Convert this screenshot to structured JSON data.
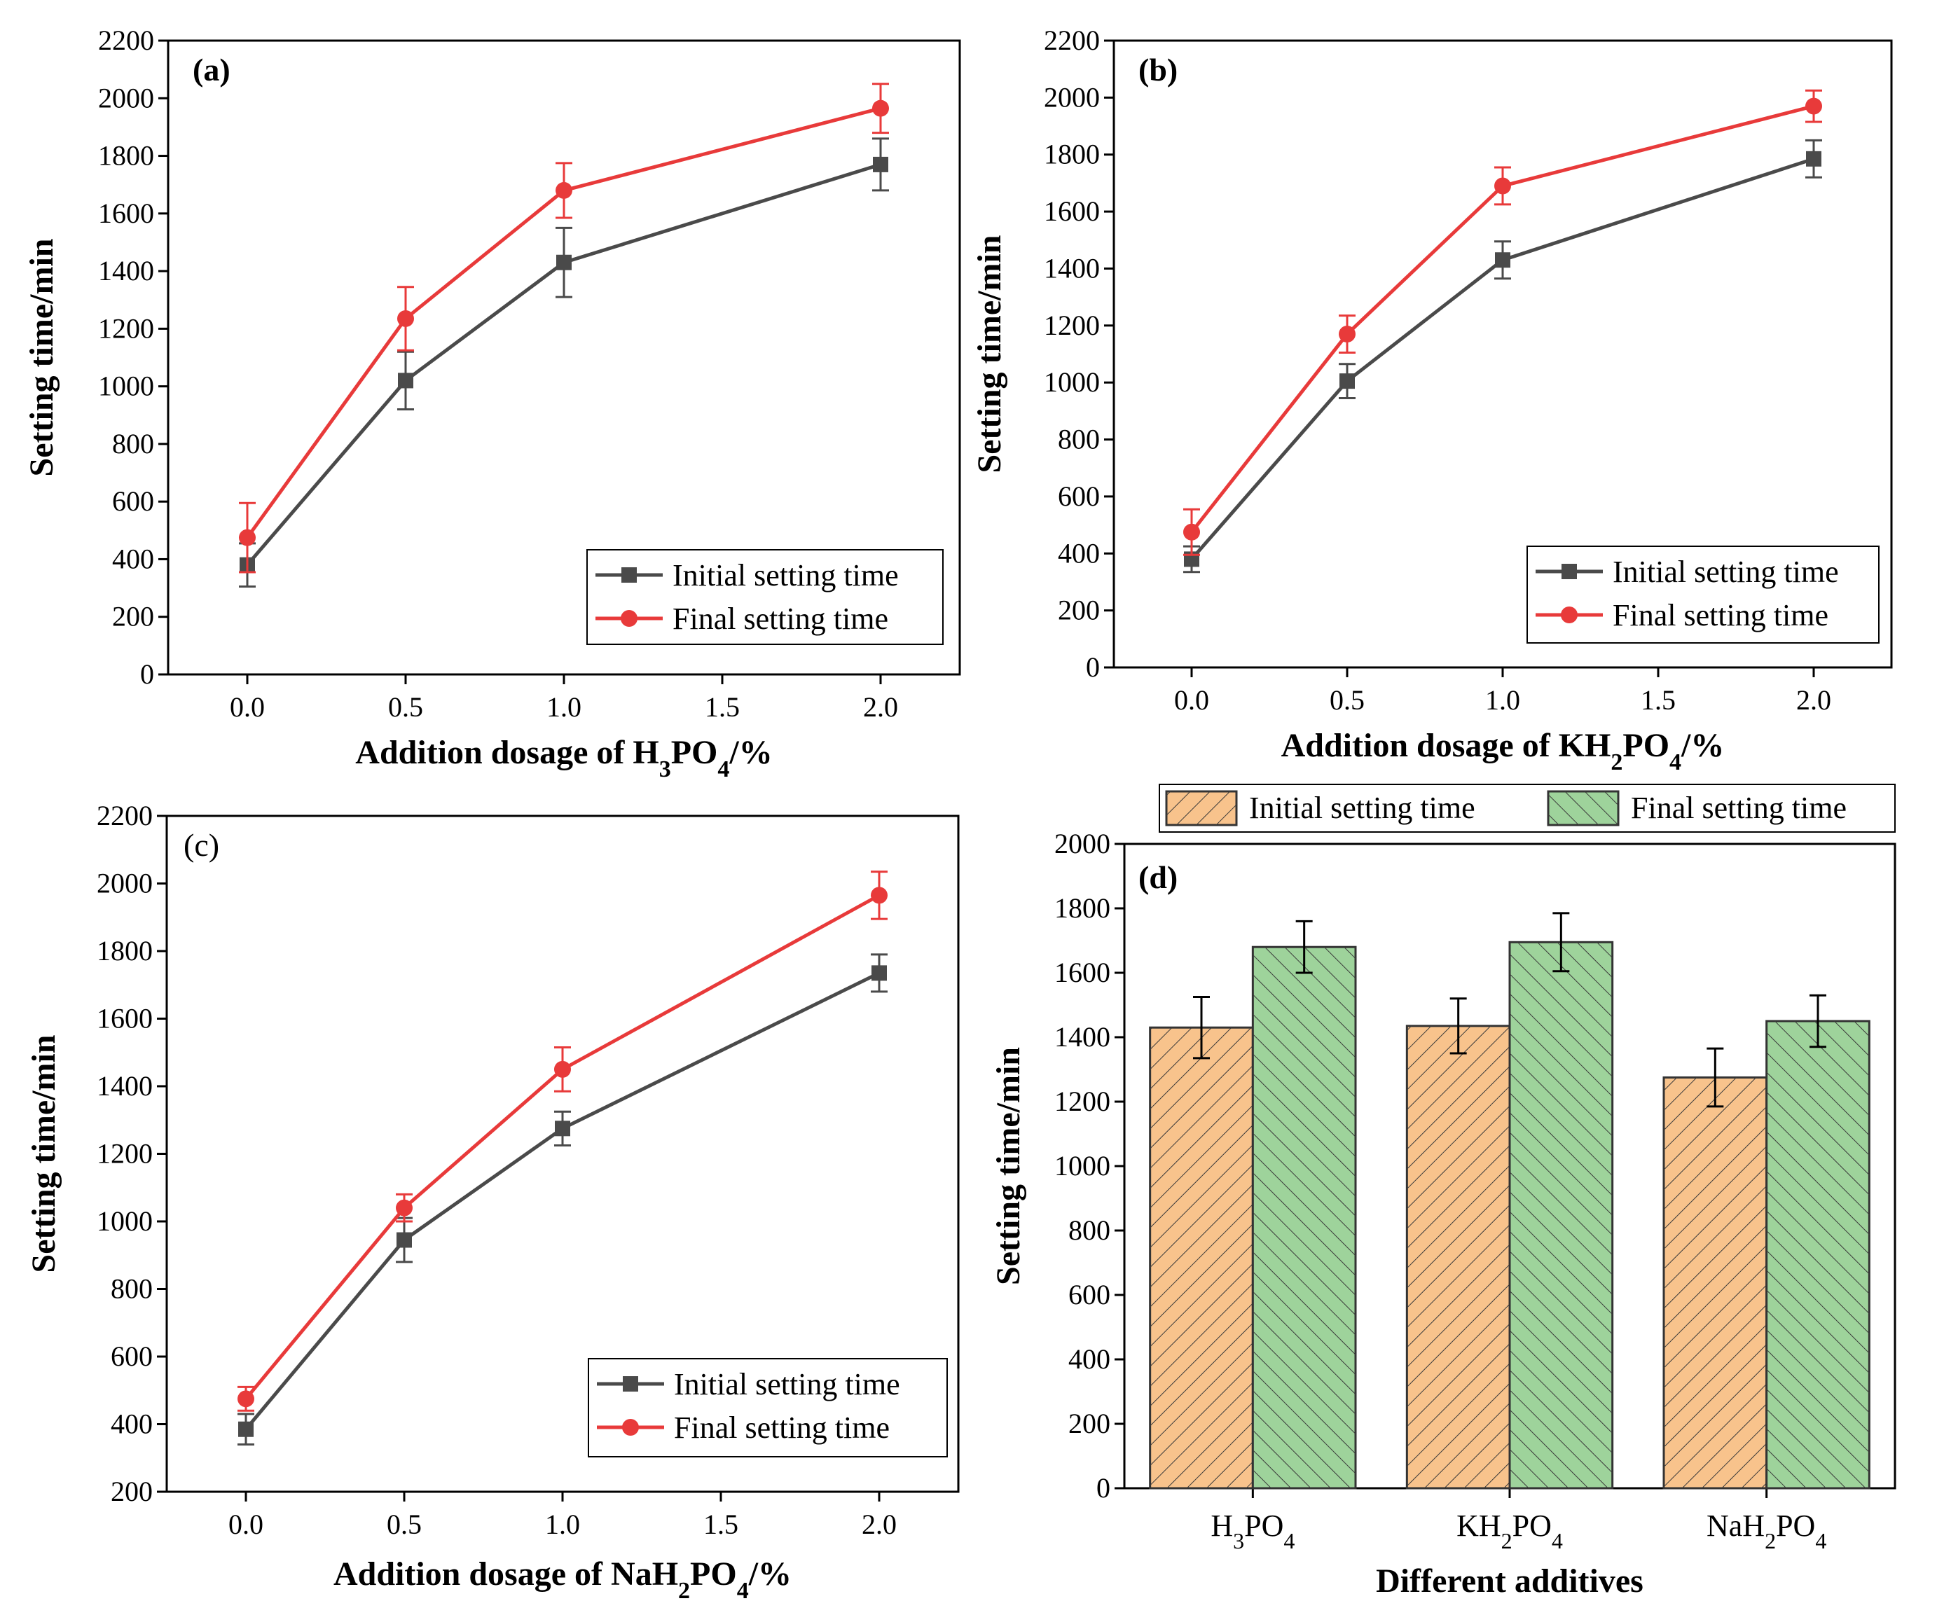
{
  "figure": {
    "panels": [
      {
        "id": "a",
        "label": "(a)",
        "label_bold": true,
        "ylabel": "Setting time/min",
        "xlabel_parts": [
          "Addition dosage of H",
          "3",
          "PO",
          "4",
          "/%"
        ],
        "legend_position": "bottom-right"
      },
      {
        "id": "b",
        "label": "(b)",
        "label_bold": true,
        "ylabel": "Setting time/min",
        "xlabel_parts": [
          "Addition dosage of KH",
          "2",
          "PO",
          "4",
          "/%"
        ],
        "legend_position": "bottom-right"
      },
      {
        "id": "c",
        "label": "(c)",
        "label_bold": false,
        "ylabel": "Setting time/min",
        "xlabel_parts": [
          "Addition dosage of NaH",
          "2",
          "PO",
          "4",
          "/%"
        ],
        "legend_position": "bottom-right"
      },
      {
        "id": "d",
        "label": "(d)",
        "label_bold": true,
        "ylabel": "Setting time/min",
        "xlabel": "Different additives",
        "legend_position": "top-outside"
      }
    ]
  },
  "chart_data": [
    {
      "panel": "a",
      "type": "line",
      "x": [
        0.0,
        0.5,
        1.0,
        2.0
      ],
      "xlim": [
        -0.25,
        2.25
      ],
      "xticks": [
        "0.0",
        "0.5",
        "1.0",
        "1.5",
        "2.0"
      ],
      "ylim": [
        0,
        2200
      ],
      "yticks": [
        "0",
        "200",
        "400",
        "600",
        "800",
        "1000",
        "1200",
        "1400",
        "1600",
        "1800",
        "2000",
        "2200"
      ],
      "series": [
        {
          "name": "Initial setting time",
          "color": "#4a4a4a",
          "marker": "square",
          "values": [
            380,
            1020,
            1430,
            1770
          ],
          "errors": [
            75,
            100,
            120,
            90
          ]
        },
        {
          "name": "Final setting time",
          "color": "#e83a3a",
          "marker": "circle",
          "values": [
            475,
            1235,
            1680,
            1965
          ],
          "errors": [
            120,
            110,
            95,
            85
          ]
        }
      ]
    },
    {
      "panel": "b",
      "type": "line",
      "x": [
        0.0,
        0.5,
        1.0,
        2.0
      ],
      "xlim": [
        -0.25,
        2.25
      ],
      "xticks": [
        "0.0",
        "0.5",
        "1.0",
        "1.5",
        "2.0"
      ],
      "ylim": [
        0,
        2200
      ],
      "yticks": [
        "0",
        "200",
        "400",
        "600",
        "800",
        "1000",
        "1200",
        "1400",
        "1600",
        "1800",
        "2000",
        "2200"
      ],
      "series": [
        {
          "name": "Initial setting time",
          "color": "#4a4a4a",
          "marker": "square",
          "values": [
            380,
            1005,
            1430,
            1785
          ],
          "errors": [
            45,
            60,
            65,
            65
          ]
        },
        {
          "name": "Final setting time",
          "color": "#e83a3a",
          "marker": "circle",
          "values": [
            475,
            1170,
            1690,
            1970
          ],
          "errors": [
            80,
            65,
            65,
            55
          ]
        }
      ]
    },
    {
      "panel": "c",
      "type": "line",
      "x": [
        0.0,
        0.5,
        1.0,
        2.0
      ],
      "xlim": [
        -0.25,
        2.25
      ],
      "xticks": [
        "0.0",
        "0.5",
        "1.0",
        "1.5",
        "2.0"
      ],
      "ylim": [
        200,
        2200
      ],
      "yticks": [
        "200",
        "400",
        "600",
        "800",
        "1000",
        "1200",
        "1400",
        "1600",
        "1800",
        "2000",
        "2200"
      ],
      "series": [
        {
          "name": "Initial setting time",
          "color": "#4a4a4a",
          "marker": "square",
          "values": [
            385,
            945,
            1275,
            1735
          ],
          "errors": [
            45,
            65,
            50,
            55
          ]
        },
        {
          "name": "Final setting time",
          "color": "#e83a3a",
          "marker": "circle",
          "values": [
            475,
            1040,
            1450,
            1965
          ],
          "errors": [
            35,
            40,
            65,
            70
          ]
        }
      ]
    },
    {
      "panel": "d",
      "type": "bar",
      "categories": [
        {
          "parts": [
            "H",
            "3",
            "PO",
            "4"
          ]
        },
        {
          "parts": [
            "KH",
            "2",
            "PO",
            "4"
          ]
        },
        {
          "parts": [
            "NaH",
            "2",
            "PO",
            "4"
          ]
        }
      ],
      "ylim": [
        0,
        2000
      ],
      "yticks": [
        "0",
        "200",
        "400",
        "600",
        "800",
        "1000",
        "1200",
        "1400",
        "1600",
        "1800",
        "2000"
      ],
      "series": [
        {
          "name": "Initial setting time",
          "color": "#f8c38c",
          "hatch": "forward",
          "values": [
            1430,
            1435,
            1275
          ],
          "errors": [
            95,
            85,
            90
          ]
        },
        {
          "name": "Final setting time",
          "color": "#9ed39b",
          "hatch": "backward",
          "values": [
            1680,
            1695,
            1450
          ],
          "errors": [
            80,
            90,
            80
          ]
        }
      ]
    }
  ]
}
